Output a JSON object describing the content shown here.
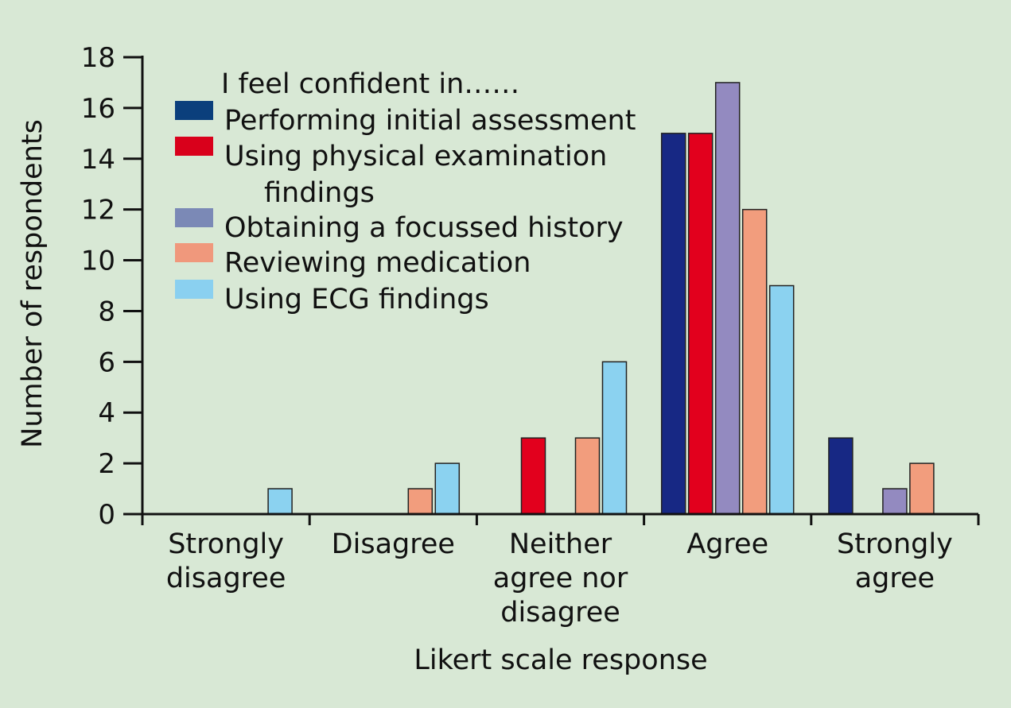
{
  "chart_data": {
    "type": "bar",
    "title": "",
    "xlabel": "Likert scale response",
    "ylabel": "Number of respondents",
    "ylim": [
      0,
      18
    ],
    "yticks": [
      0,
      2,
      4,
      6,
      8,
      10,
      12,
      14,
      16,
      18
    ],
    "categories": [
      [
        "Strongly",
        "disagree"
      ],
      [
        "Disagree"
      ],
      [
        "Neither",
        "agree nor",
        "disagree"
      ],
      [
        "Agree"
      ],
      [
        "Strongly",
        "agree"
      ]
    ],
    "legend_title": "I feel confident in……",
    "legend_position": "top-left",
    "grid": false,
    "series": [
      {
        "name": "Performing initial assessment",
        "legend_lines": [
          "Performing initial assessment"
        ],
        "legend_color": "#0b3f7c",
        "color": "#172884",
        "values": [
          0,
          0,
          0,
          15,
          3
        ]
      },
      {
        "name": "Using physical examination findings",
        "legend_lines": [
          "Using physical examination",
          "findings"
        ],
        "legend_color": "#d9001b",
        "color": "#e2001d",
        "values": [
          0,
          0,
          3,
          15,
          0
        ]
      },
      {
        "name": "Obtaining a focussed history",
        "legend_lines": [
          "Obtaining a focussed history"
        ],
        "legend_color": "#7b89b6",
        "color": "#938ac0",
        "values": [
          0,
          0,
          0,
          17,
          1
        ]
      },
      {
        "name": "Reviewing medication",
        "legend_lines": [
          "Reviewing medication"
        ],
        "legend_color": "#f0987c",
        "color": "#f29d7d",
        "values": [
          0,
          1,
          3,
          12,
          2
        ]
      },
      {
        "name": "Using ECG findings",
        "legend_lines": [
          "Using ECG findings"
        ],
        "legend_color": "#8ad0f0",
        "color": "#8bd2f0",
        "values": [
          1,
          2,
          6,
          9,
          0
        ]
      }
    ]
  }
}
